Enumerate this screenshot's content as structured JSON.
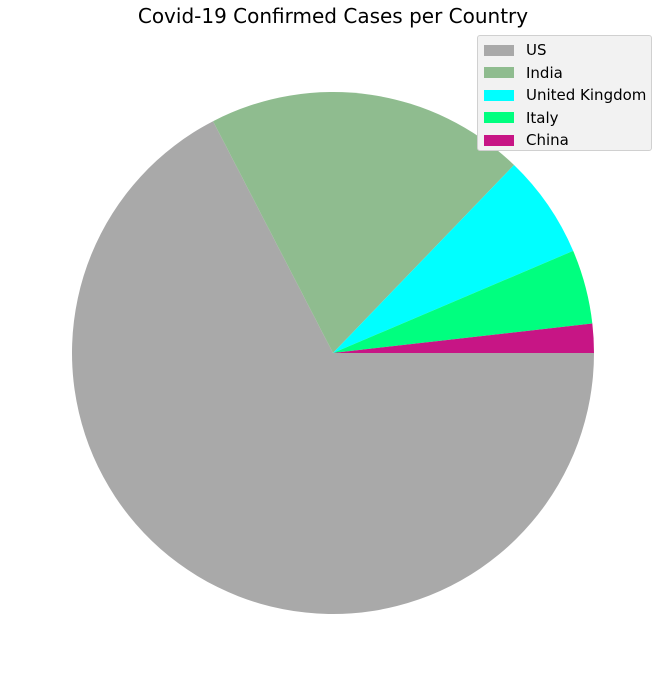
{
  "chart_data": {
    "type": "pie",
    "title": "Covid-19 Confirmed Cases per Country",
    "categories": [
      "US",
      "India",
      "United Kingdom",
      "Italy",
      "China"
    ],
    "values": [
      67.4,
      19.8,
      6.4,
      4.6,
      1.8
    ],
    "colors": [
      "#a9a9a9",
      "#8fbc8f",
      "#00ffff",
      "#00ff7f",
      "#c71585"
    ],
    "start_angle_deg": 0,
    "direction": "clockwise",
    "legend_position": "top-right"
  }
}
